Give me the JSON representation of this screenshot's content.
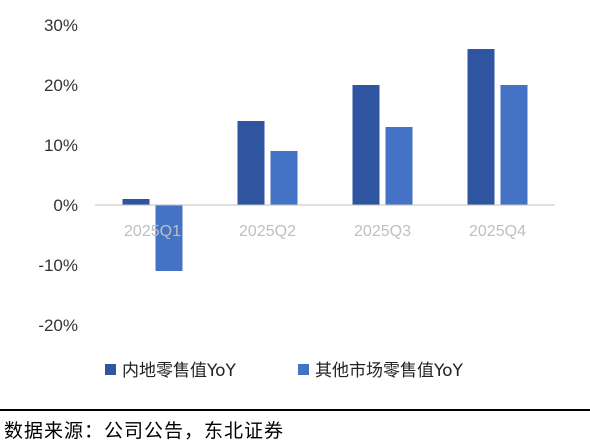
{
  "chart_data": {
    "type": "bar",
    "categories": [
      "2025Q1",
      "2025Q2",
      "2025Q3",
      "2025Q4"
    ],
    "series": [
      {
        "name": "内地零售值YoY",
        "values": [
          1,
          14,
          20,
          26
        ],
        "color": "#2f55a0"
      },
      {
        "name": "其他市场零售值YoY",
        "values": [
          -11,
          9,
          13,
          20
        ],
        "color": "#4472c4"
      }
    ],
    "ylim": [
      -20,
      30
    ],
    "yticks": [
      30,
      20,
      10,
      0,
      -10,
      -20
    ],
    "ytick_labels": [
      "30%",
      "20%",
      "10%",
      "0%",
      "-10%",
      "-20%"
    ],
    "grid": false,
    "legend_position": "bottom"
  },
  "source_note": "数据来源：公司公告，东北证券"
}
